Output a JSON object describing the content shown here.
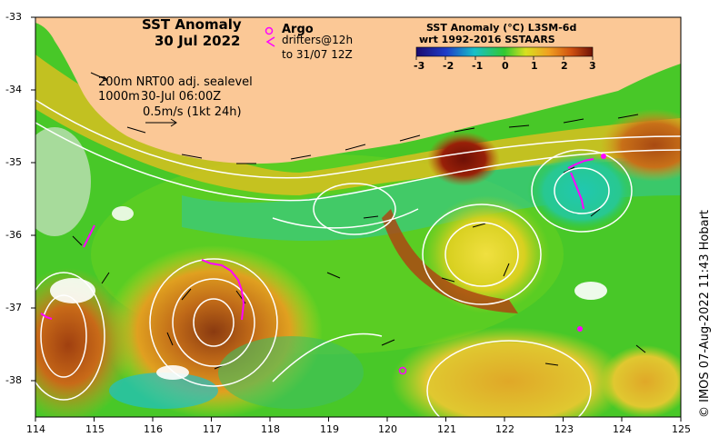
{
  "title": {
    "line1": "SST Anomaly",
    "line2": "30 Jul 2022"
  },
  "legend": {
    "argo_label": "Argo",
    "drifters_label": "drifters@12h",
    "drifters_sub": "to 31/07 12Z",
    "argo_color": "#ff00ff"
  },
  "colorbar": {
    "title_line1": "SST Anomaly (°C) L3SM-6d",
    "title_line2": "wrt 1992-2016 SSTAARS",
    "ticks": [
      "-3",
      "-2",
      "-1",
      "0",
      "1",
      "2",
      "3"
    ]
  },
  "info": {
    "line1": "200m  NRT00 adj. sealevel",
    "line2": "1000m",
    "line2b": "30-Jul 06:00Z",
    "line3": "0.5m/s (1kt 24h)"
  },
  "axes": {
    "x_ticks": [
      "114",
      "115",
      "116",
      "117",
      "118",
      "119",
      "120",
      "121",
      "122",
      "123",
      "124",
      "125"
    ],
    "y_ticks": [
      "-33",
      "-34",
      "-35",
      "-36",
      "-37",
      "-38"
    ],
    "xlim": [
      114,
      125
    ],
    "ylim": [
      -38.5,
      -33
    ]
  },
  "credit": "© IMOS 07-Aug-2022 11:43 Hobart",
  "colors": {
    "land": "#fbc896",
    "contour": "#ffffff",
    "marker": "#ff00ff"
  }
}
